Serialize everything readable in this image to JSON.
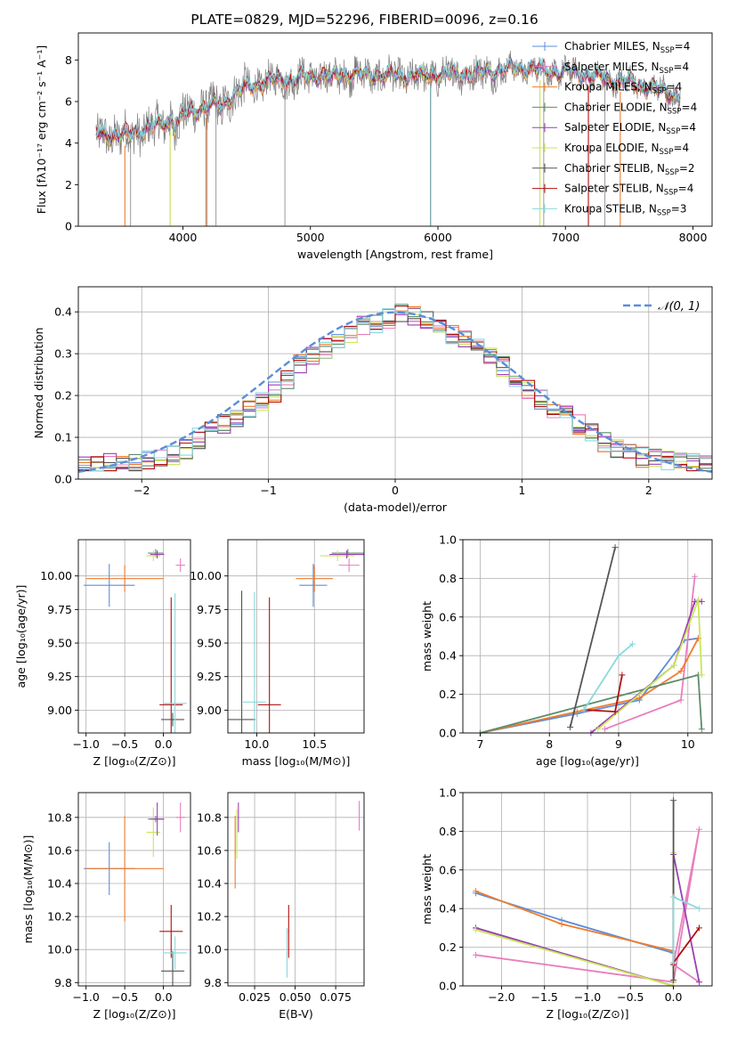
{
  "figure_title": "PLATE=0829, MJD=52296, FIBERID=0096, z=0.16",
  "colors": {
    "Chabrier MILES": "#5b8dd9",
    "Salpeter MILES": "#e87fbe",
    "Kroupa MILES": "#ee7d2f",
    "Chabrier ELODIE": "#5e8c6a",
    "Salpeter ELODIE": "#9b3fb5",
    "Kroupa ELODIE": "#c9e65a",
    "Chabrier STELIB": "#555555",
    "Salpeter STELIB": "#b01010",
    "Kroupa STELIB": "#8ad9dc",
    "data": "#808080",
    "normal": "#5b8dd9"
  },
  "chart_data": [
    {
      "id": "spectrum",
      "type": "line",
      "xlabel": "wavelength [Angstrom, rest frame]",
      "ylabel": "Flux [fλ10⁻¹⁷ erg cm⁻² s⁻¹ A⁻¹]",
      "xlim": [
        3180,
        8150
      ],
      "ylim": [
        0,
        9.3
      ],
      "xticks": [
        "4000",
        "5000",
        "6000",
        "7000",
        "8000"
      ],
      "yticks": [
        "0",
        "2",
        "4",
        "6",
        "8"
      ],
      "continuum": [
        [
          3320,
          4.5
        ],
        [
          3500,
          4.3
        ],
        [
          3700,
          4.6
        ],
        [
          3900,
          5.1
        ],
        [
          4100,
          5.6
        ],
        [
          4300,
          5.9
        ],
        [
          4500,
          6.7
        ],
        [
          4700,
          7.0
        ],
        [
          4900,
          7.1
        ],
        [
          5100,
          7.25
        ],
        [
          5300,
          7.3
        ],
        [
          5500,
          7.25
        ],
        [
          5700,
          7.2
        ],
        [
          5900,
          7.25
        ],
        [
          6100,
          7.3
        ],
        [
          6300,
          7.35
        ],
        [
          6500,
          7.5
        ],
        [
          6700,
          7.6
        ],
        [
          6900,
          7.45
        ],
        [
          7100,
          7.35
        ],
        [
          7300,
          7.1
        ],
        [
          7500,
          6.9
        ],
        [
          7700,
          6.6
        ],
        [
          7850,
          6.3
        ]
      ],
      "absorption_lines": [
        3590,
        3900,
        4190,
        4260,
        4800,
        5940,
        6830,
        7310
      ],
      "legend": [
        {
          "name": "Chabrier MILES, N",
          "sub": "SSP",
          "count": "=4"
        },
        {
          "name": "Salpeter MILES, N",
          "sub": "SSP",
          "count": "=4"
        },
        {
          "name": "Kroupa MILES, N",
          "sub": "SSP",
          "count": "=4"
        },
        {
          "name": "Chabrier ELODIE, N",
          "sub": "SSP",
          "count": "=4"
        },
        {
          "name": "Salpeter ELODIE, N",
          "sub": "SSP",
          "count": "=4"
        },
        {
          "name": "Kroupa ELODIE, N",
          "sub": "SSP",
          "count": "=4"
        },
        {
          "name": "Chabrier STELIB, N",
          "sub": "SSP",
          "count": "=2"
        },
        {
          "name": "Salpeter STELIB, N",
          "sub": "SSP",
          "count": "=4"
        },
        {
          "name": "Kroupa STELIB, N",
          "sub": "SSP",
          "count": "=3"
        }
      ]
    },
    {
      "id": "residuals",
      "type": "line",
      "xlabel": "(data-model)/error",
      "ylabel": "Normed distribution",
      "xlim": [
        -2.5,
        2.5
      ],
      "ylim": [
        0,
        0.46
      ],
      "xticks": [
        -2,
        -1,
        0,
        1,
        2
      ],
      "yticks": [
        0.0,
        0.1,
        0.2,
        0.3,
        0.4
      ],
      "legend": [
        "𝒩(0, 1)"
      ],
      "hist_x": [
        -2.5,
        -2.3,
        -2.1,
        -1.9,
        -1.7,
        -1.5,
        -1.3,
        -1.1,
        -0.9,
        -0.7,
        -0.5,
        -0.3,
        -0.1,
        0.1,
        0.3,
        0.5,
        0.7,
        0.9,
        1.1,
        1.3,
        1.5,
        1.7,
        1.9,
        2.1,
        2.3,
        2.5
      ],
      "hist_y": [
        0.03,
        0.035,
        0.04,
        0.05,
        0.06,
        0.11,
        0.14,
        0.17,
        0.22,
        0.29,
        0.32,
        0.36,
        0.38,
        0.4,
        0.37,
        0.34,
        0.3,
        0.26,
        0.2,
        0.16,
        0.12,
        0.08,
        0.055,
        0.045,
        0.04,
        0.035
      ]
    },
    {
      "id": "age-vs-Z",
      "type": "scatter",
      "xlabel": "Z [log₁₀(Z/Z⊙)]",
      "ylabel": "age  [log₁₀(age/yr)]",
      "xlim": [
        -1.1,
        0.35
      ],
      "ylim": [
        8.83,
        10.27
      ],
      "xticks": [
        -1.0,
        -0.5,
        0.0
      ],
      "yticks": [
        9.0,
        9.25,
        9.5,
        9.75,
        10.0
      ],
      "points": [
        {
          "s": "Chabrier MILES",
          "x": -0.7,
          "y": 9.93,
          "xerr": 0.33,
          "yerr": 0.16
        },
        {
          "s": "Kroupa MILES",
          "x": -0.5,
          "y": 9.98,
          "xerr": 0.5,
          "yerr": 0.1
        },
        {
          "s": "Salpeter MILES",
          "x": 0.22,
          "y": 10.08,
          "xerr": 0.06,
          "yerr": 0.05
        },
        {
          "s": "Chabrier ELODIE",
          "x": -0.1,
          "y": 10.17,
          "xerr": 0.1,
          "yerr": 0.03
        },
        {
          "s": "Kroupa ELODIE",
          "x": -0.13,
          "y": 10.15,
          "xerr": 0.09,
          "yerr": 0.04
        },
        {
          "s": "Salpeter ELODIE",
          "x": -0.08,
          "y": 10.16,
          "xerr": 0.09,
          "yerr": 0.03
        },
        {
          "s": "Chabrier STELIB",
          "x": 0.12,
          "y": 8.93,
          "xerr": 0.15,
          "yerr": 0.05
        },
        {
          "s": "Salpeter STELIB",
          "x": 0.1,
          "y": 9.04,
          "xerr": 0.15,
          "yerr": 0.8
        },
        {
          "s": "Kroupa STELIB",
          "x": 0.15,
          "y": 9.05,
          "xerr": 0.15,
          "yerr": 0.82
        }
      ]
    },
    {
      "id": "age-vs-mass",
      "type": "scatter",
      "xlabel": "mass [log₁₀(M/M⊙)]",
      "ylabel": "",
      "xlim": [
        9.75,
        10.93
      ],
      "ylim": [
        8.83,
        10.27
      ],
      "xticks": [
        10.0,
        10.5
      ],
      "yticks": [
        9.0,
        9.25,
        9.5,
        9.75,
        10.0
      ],
      "points": [
        {
          "s": "Chabrier MILES",
          "x": 10.49,
          "y": 9.93,
          "xerr": 0.12,
          "yerr": 0.16
        },
        {
          "s": "Kroupa MILES",
          "x": 10.5,
          "y": 9.98,
          "xerr": 0.16,
          "yerr": 0.1
        },
        {
          "s": "Salpeter MILES",
          "x": 10.8,
          "y": 10.08,
          "xerr": 0.09,
          "yerr": 0.05
        },
        {
          "s": "Chabrier ELODIE",
          "x": 10.79,
          "y": 10.17,
          "xerr": 0.14,
          "yerr": 0.03
        },
        {
          "s": "Kroupa ELODIE",
          "x": 10.7,
          "y": 10.15,
          "xerr": 0.15,
          "yerr": 0.04
        },
        {
          "s": "Salpeter ELODIE",
          "x": 10.78,
          "y": 10.16,
          "xerr": 0.15,
          "yerr": 0.03
        },
        {
          "s": "Chabrier STELIB",
          "x": 9.87,
          "y": 8.93,
          "xerr": 0.12,
          "yerr": 0.96
        },
        {
          "s": "Salpeter STELIB",
          "x": 10.11,
          "y": 9.04,
          "xerr": 0.1,
          "yerr": 0.8
        },
        {
          "s": "Kroupa STELIB",
          "x": 9.98,
          "y": 9.06,
          "xerr": 0.1,
          "yerr": 0.82
        }
      ]
    },
    {
      "id": "weight-vs-age",
      "type": "line",
      "xlabel": "age  [log₁₀(age/yr)]",
      "ylabel": "mass weight",
      "xlim": [
        6.75,
        10.35
      ],
      "ylim": [
        0,
        1.0
      ],
      "xticks": [
        7,
        8,
        9,
        10
      ],
      "yticks": [
        0.0,
        0.2,
        0.4,
        0.6,
        0.8,
        1.0
      ],
      "series": [
        {
          "s": "Chabrier MILES",
          "x": [
            7.0,
            8.4,
            9.3,
            9.95,
            10.15
          ],
          "y": [
            0.0,
            0.1,
            0.17,
            0.48,
            0.49
          ]
        },
        {
          "s": "Salpeter MILES",
          "x": [
            8.8,
            9.9,
            10.1
          ],
          "y": [
            0.02,
            0.17,
            0.81
          ]
        },
        {
          "s": "Kroupa MILES",
          "x": [
            7.0,
            8.4,
            9.3,
            9.9,
            10.15
          ],
          "y": [
            0.0,
            0.11,
            0.18,
            0.32,
            0.49
          ]
        },
        {
          "s": "Chabrier ELODIE",
          "x": [
            7.0,
            10.15,
            10.2
          ],
          "y": [
            0.0,
            0.3,
            0.02
          ]
        },
        {
          "s": "Salpeter ELODIE",
          "x": [
            8.6,
            9.8,
            10.1,
            10.2
          ],
          "y": [
            0.0,
            0.35,
            0.68,
            0.68
          ]
        },
        {
          "s": "Kroupa ELODIE",
          "x": [
            8.7,
            9.8,
            10.15,
            10.2
          ],
          "y": [
            0.02,
            0.35,
            0.69,
            0.3
          ]
        },
        {
          "s": "Chabrier STELIB",
          "x": [
            8.3,
            8.95
          ],
          "y": [
            0.03,
            0.96
          ]
        },
        {
          "s": "Salpeter STELIB",
          "x": [
            8.5,
            8.95,
            9.05
          ],
          "y": [
            0.12,
            0.11,
            0.3
          ]
        },
        {
          "s": "Kroupa STELIB",
          "x": [
            8.5,
            9.0,
            9.2
          ],
          "y": [
            0.12,
            0.4,
            0.46
          ]
        }
      ]
    },
    {
      "id": "mass-vs-Z",
      "type": "scatter",
      "xlabel": "Z [log₁₀(Z/Z⊙)]",
      "ylabel": "mass [log₁₀(M/M⊙)]",
      "xlim": [
        -1.1,
        0.35
      ],
      "ylim": [
        9.78,
        10.95
      ],
      "xticks": [
        -1.0,
        -0.5,
        0.0
      ],
      "yticks": [
        9.8,
        10.0,
        10.2,
        10.4,
        10.6,
        10.8
      ],
      "points": [
        {
          "s": "Chabrier MILES",
          "x": -0.7,
          "y": 10.49,
          "xerr": 0.33,
          "yerr": 0.16
        },
        {
          "s": "Kroupa MILES",
          "x": -0.5,
          "y": 10.49,
          "xerr": 0.5,
          "yerr": 0.32
        },
        {
          "s": "Salpeter MILES",
          "x": 0.22,
          "y": 10.8,
          "xerr": 0.06,
          "yerr": 0.09
        },
        {
          "s": "Chabrier ELODIE",
          "x": -0.1,
          "y": 10.79,
          "xerr": 0.1,
          "yerr": 0.02
        },
        {
          "s": "Kroupa ELODIE",
          "x": -0.13,
          "y": 10.71,
          "xerr": 0.09,
          "yerr": 0.15
        },
        {
          "s": "Salpeter ELODIE",
          "x": -0.08,
          "y": 10.79,
          "xerr": 0.09,
          "yerr": 0.1
        },
        {
          "s": "Chabrier STELIB",
          "x": 0.12,
          "y": 9.87,
          "xerr": 0.15,
          "yerr": 0.12
        },
        {
          "s": "Salpeter STELIB",
          "x": 0.1,
          "y": 10.11,
          "xerr": 0.15,
          "yerr": 0.16
        },
        {
          "s": "Kroupa STELIB",
          "x": 0.15,
          "y": 9.98,
          "xerr": 0.15,
          "yerr": 0.1
        }
      ]
    },
    {
      "id": "mass-vs-EBV",
      "type": "scatter",
      "xlabel": "E(B-V)",
      "ylabel": "",
      "xlim": [
        0.0085,
        0.0925
      ],
      "ylim": [
        9.78,
        10.95
      ],
      "xticks": [
        0.025,
        0.05,
        0.075
      ],
      "ytick_labels": [
        "9.8",
        "10.0",
        "10.2",
        "10.4",
        "10.6",
        "10.8"
      ],
      "yticks": [
        9.8,
        10.0,
        10.2,
        10.4,
        10.6,
        10.8
      ],
      "points": [
        {
          "s": "Kroupa MILES",
          "x": 0.013,
          "y": 10.59,
          "xerr": 0.0003,
          "yerr": 0.22
        },
        {
          "s": "Kroupa ELODIE",
          "x": 0.014,
          "y": 10.7,
          "xerr": 0.0003,
          "yerr": 0.15
        },
        {
          "s": "Salpeter ELODIE",
          "x": 0.015,
          "y": 10.8,
          "xerr": 0.0003,
          "yerr": 0.09
        },
        {
          "s": "Salpeter STELIB",
          "x": 0.046,
          "y": 10.11,
          "xerr": 0.0003,
          "yerr": 0.16
        },
        {
          "s": "Kroupa STELIB",
          "x": 0.045,
          "y": 9.98,
          "xerr": 0.0003,
          "yerr": 0.15
        },
        {
          "s": "Salpeter MILES",
          "x": 0.0895,
          "y": 10.81,
          "xerr": 0.0003,
          "yerr": 0.09
        }
      ]
    },
    {
      "id": "weight-vs-Z",
      "type": "line",
      "xlabel": "Z [log₁₀(Z/Z⊙)]",
      "ylabel": "mass weight",
      "xlim": [
        -2.45,
        0.45
      ],
      "ylim": [
        0,
        1.0
      ],
      "xticks": [
        -2.0,
        -1.5,
        -1.0,
        -0.5,
        0.0
      ],
      "yticks": [
        0.0,
        0.2,
        0.4,
        0.6,
        0.8,
        1.0
      ],
      "series": [
        {
          "s": "Chabrier MILES",
          "x": [
            -2.3,
            -1.3,
            0.0
          ],
          "y": [
            0.48,
            0.34,
            0.17
          ]
        },
        {
          "s": "Kroupa MILES",
          "x": [
            -2.3,
            -1.3,
            0.0
          ],
          "y": [
            0.49,
            0.32,
            0.18
          ]
        },
        {
          "s": "Salpeter MILES",
          "x": [
            -2.3,
            0.0,
            0.3,
            0.0,
            0.3
          ],
          "y": [
            0.16,
            0.02,
            0.81,
            0.11,
            0.02
          ]
        },
        {
          "s": "Chabrier ELODIE",
          "x": [
            -2.3,
            0.0,
            0.0
          ],
          "y": [
            0.3,
            0.0,
            0.68
          ]
        },
        {
          "s": "Salpeter ELODIE",
          "x": [
            -2.3,
            0.0,
            0.0,
            0.3
          ],
          "y": [
            0.3,
            0.0,
            0.68,
            0.02
          ]
        },
        {
          "s": "Kroupa ELODIE",
          "x": [
            -2.3,
            0.0,
            0.0
          ],
          "y": [
            0.29,
            0.0,
            0.69
          ]
        },
        {
          "s": "Chabrier STELIB",
          "x": [
            0.0,
            0.0
          ],
          "y": [
            0.03,
            0.96
          ]
        },
        {
          "s": "Salpeter STELIB",
          "x": [
            0.0,
            0.0,
            0.3
          ],
          "y": [
            0.11,
            0.12,
            0.3
          ]
        },
        {
          "s": "Kroupa STELIB",
          "x": [
            0.0,
            0.0,
            0.3
          ],
          "y": [
            0.12,
            0.46,
            0.4
          ]
        }
      ]
    }
  ]
}
